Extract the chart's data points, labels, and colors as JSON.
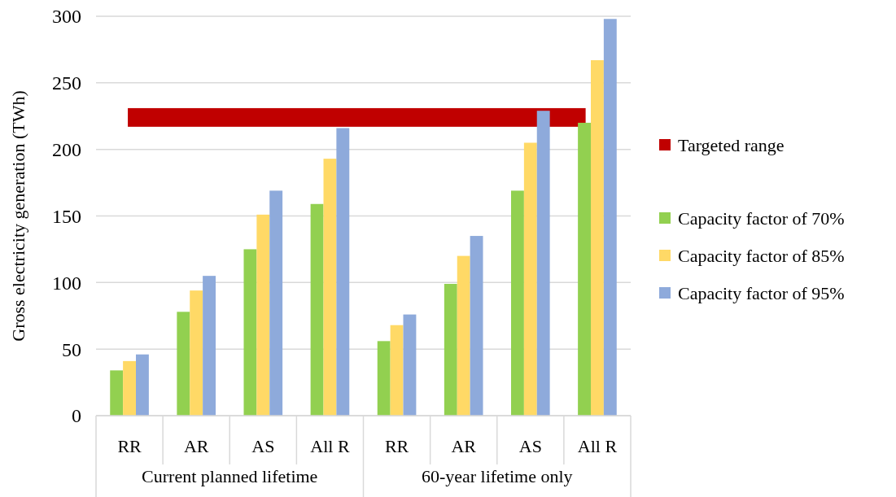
{
  "chart_data": {
    "type": "bar",
    "ylabel": "Gross electricity generation (TWh)",
    "categories": [
      "RR",
      "AR",
      "AS",
      "All R",
      "RR",
      "AR",
      "AS",
      "All R"
    ],
    "series": [
      {
        "name": "Capacity factor of 70%",
        "color": "#92d050",
        "values": [
          34,
          78,
          125,
          159,
          56,
          99,
          169,
          220
        ]
      },
      {
        "name": "Capacity factor of 85%",
        "color": "#ffd966",
        "values": [
          41,
          94,
          151,
          193,
          68,
          120,
          205,
          267
        ]
      },
      {
        "name": "Capacity factor of 95%",
        "color": "#8eaadb",
        "values": [
          46,
          105,
          169,
          216,
          76,
          135,
          229,
          298
        ]
      }
    ],
    "ylim": [
      0,
      300
    ],
    "yticks": [
      0,
      50,
      100,
      150,
      200,
      250,
      300
    ],
    "grid": "y",
    "legend": "right",
    "bands": [
      {
        "axis": "y",
        "from": 217,
        "to": 231,
        "label": "Targeted range",
        "color": "#c00000"
      }
    ],
    "annotations": [
      "Current planned lifetime",
      "60-year lifetime only"
    ]
  }
}
